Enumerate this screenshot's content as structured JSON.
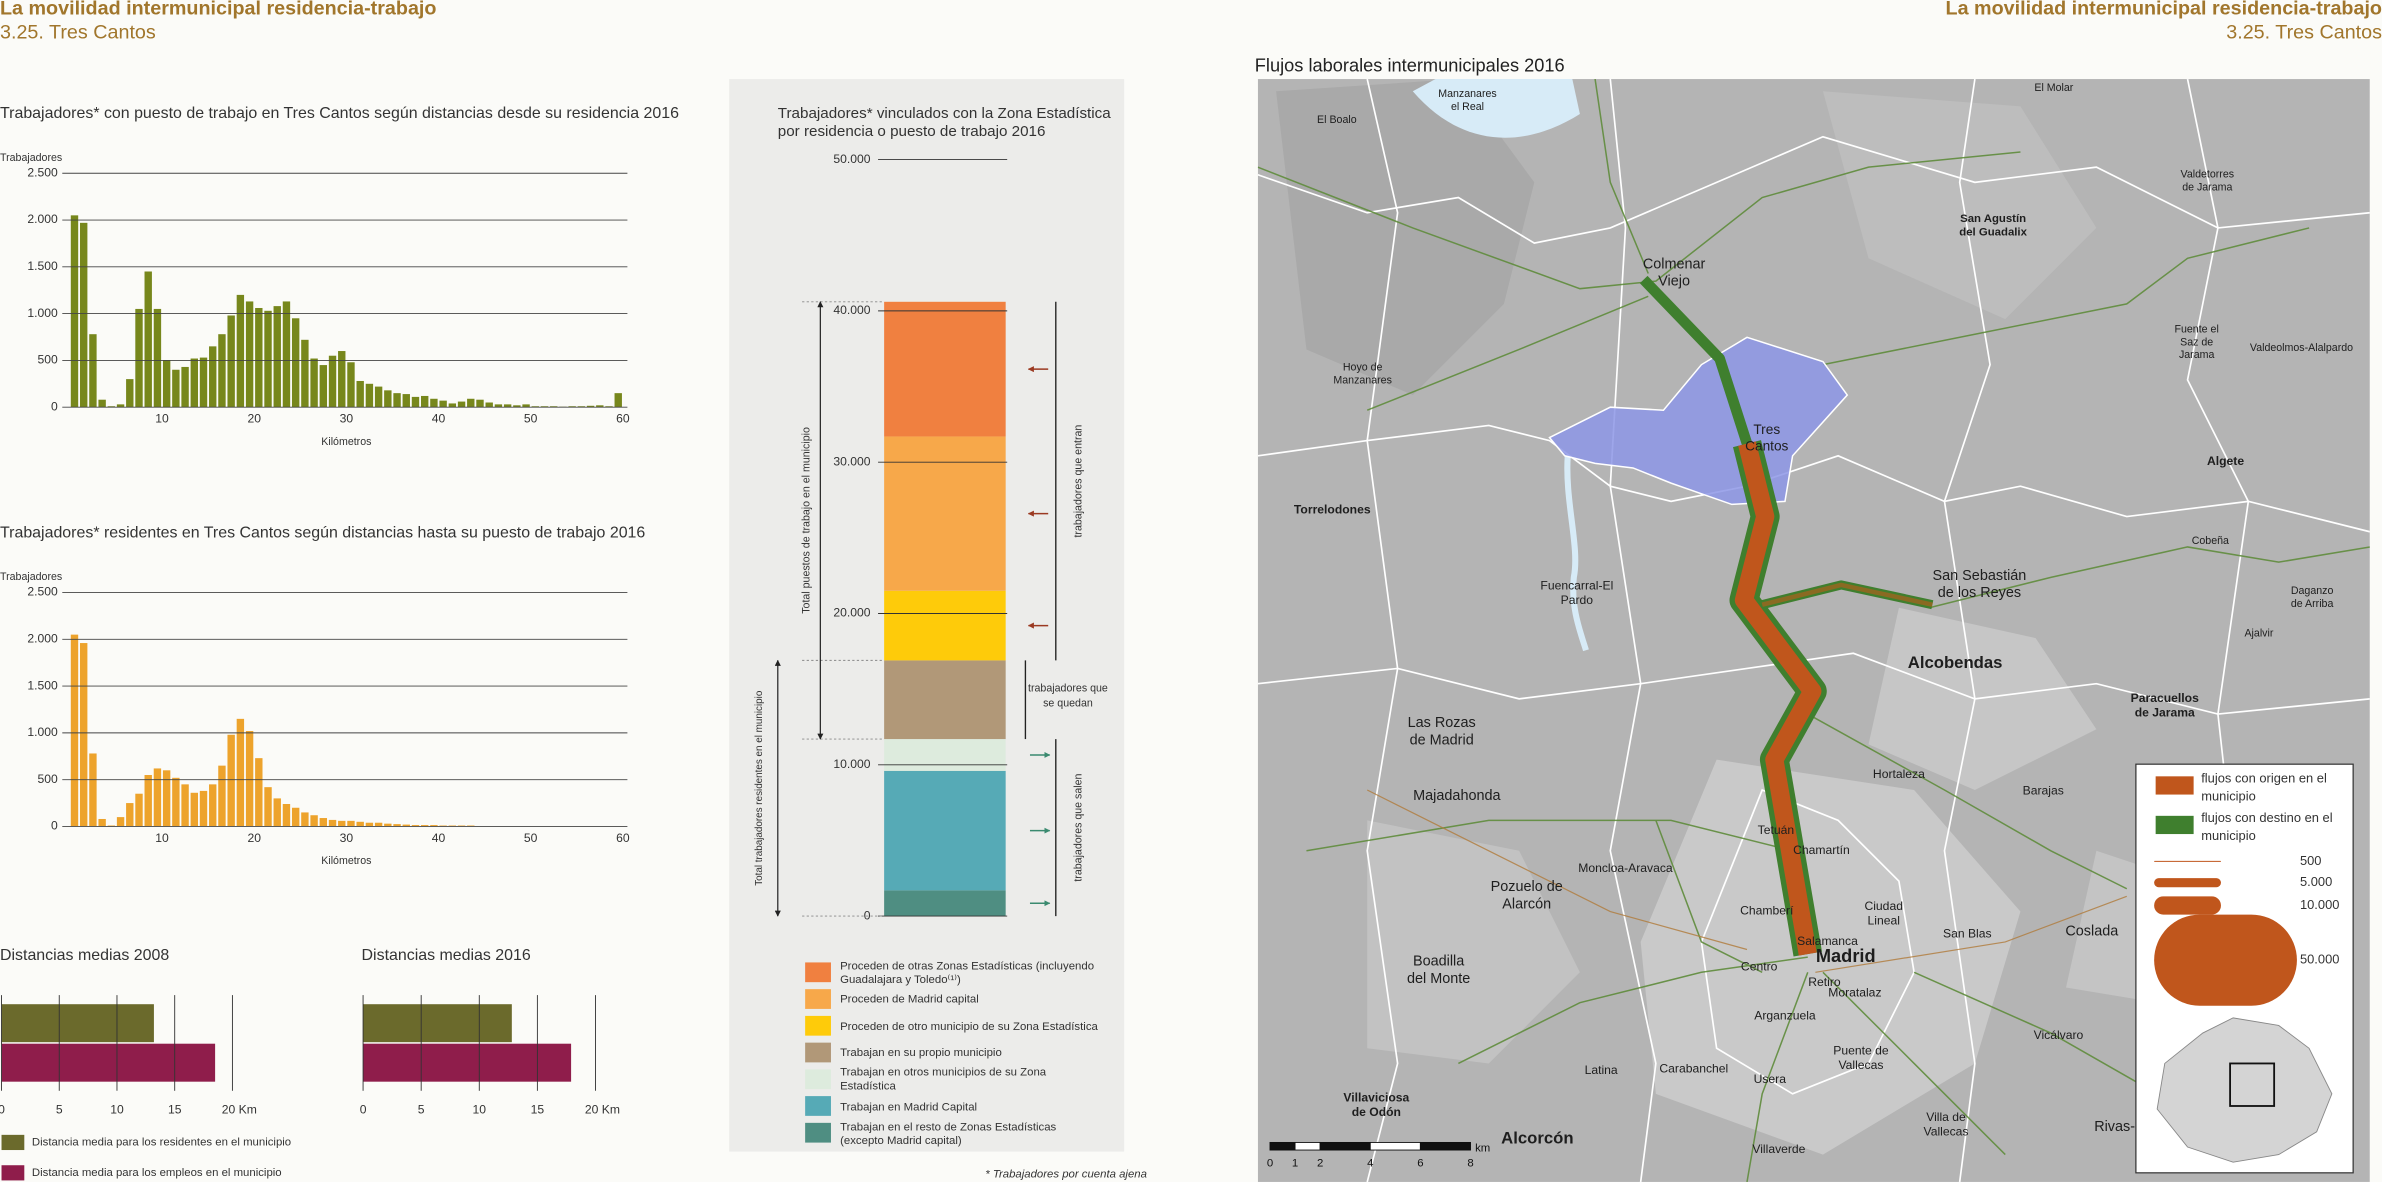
{
  "header": {
    "title": "La movilidad intermunicipal residencia-trabajo",
    "subtitle": "3.25. Tres Cantos"
  },
  "chart_data": [
    {
      "type": "histogram",
      "title": "Trabajadores* con puesto de trabajo en Tres Cantos según distancias desde su residencia 2016",
      "ylabel": "Trabajadores",
      "xlabel": "Kilómetros",
      "color": "#77871c",
      "bins": [
        0,
        1,
        2,
        3,
        4,
        5,
        6,
        7,
        8,
        9,
        10,
        11,
        12,
        13,
        14,
        15,
        16,
        17,
        18,
        19,
        20,
        21,
        22,
        23,
        24,
        25,
        26,
        27,
        28,
        29,
        30,
        31,
        32,
        33,
        34,
        35,
        36,
        37,
        38,
        39,
        40,
        41,
        42,
        43,
        44,
        45,
        46,
        47,
        48,
        49,
        50,
        51,
        52,
        53,
        54,
        55,
        56,
        57,
        58,
        59,
        60
      ],
      "values": [
        2050,
        1970,
        780,
        80,
        10,
        30,
        300,
        1050,
        1450,
        1050,
        500,
        400,
        430,
        520,
        530,
        650,
        780,
        980,
        1200,
        1130,
        1060,
        1030,
        1080,
        1130,
        950,
        720,
        520,
        450,
        550,
        600,
        480,
        280,
        250,
        220,
        180,
        150,
        140,
        110,
        120,
        90,
        70,
        40,
        60,
        90,
        80,
        50,
        30,
        30,
        20,
        30,
        10,
        10,
        10,
        5,
        10,
        10,
        15,
        20,
        10,
        150
      ],
      "xlim": [
        0,
        60
      ],
      "xticks": [
        10,
        20,
        30,
        40,
        50,
        60
      ],
      "ylim": [
        0,
        2500
      ],
      "yticks": [
        0,
        500,
        {
          "value": 1000,
          "label": "1.000"
        },
        {
          "value": 1500,
          "label": "1.500"
        },
        {
          "value": 2000,
          "label": "2.000"
        },
        {
          "value": 2500,
          "label": "2.500"
        }
      ],
      "grid": true
    },
    {
      "type": "histogram",
      "title": "Trabajadores* residentes en Tres Cantos según distancias hasta su puesto de trabajo 2016",
      "ylabel": "Trabajadores",
      "xlabel": "Kilómetros",
      "color": "#eda32c",
      "bins": [
        0,
        1,
        2,
        3,
        4,
        5,
        6,
        7,
        8,
        9,
        10,
        11,
        12,
        13,
        14,
        15,
        16,
        17,
        18,
        19,
        20,
        21,
        22,
        23,
        24,
        25,
        26,
        27,
        28,
        29,
        30,
        31,
        32,
        33,
        34,
        35,
        36,
        37,
        38,
        39,
        40,
        41,
        42,
        43,
        44,
        45,
        46,
        47,
        48,
        49,
        50,
        51,
        52,
        53,
        54,
        55,
        56,
        57,
        58,
        59,
        60
      ],
      "values": [
        2050,
        1960,
        780,
        80,
        10,
        100,
        250,
        350,
        550,
        620,
        600,
        520,
        450,
        360,
        380,
        450,
        650,
        980,
        1150,
        1020,
        730,
        420,
        300,
        240,
        200,
        150,
        120,
        90,
        70,
        60,
        60,
        50,
        40,
        40,
        30,
        25,
        20,
        15,
        15,
        15,
        10,
        10,
        10,
        10,
        5,
        5,
        5,
        5,
        5,
        5,
        3,
        3,
        2,
        2,
        2,
        2,
        2,
        2,
        2,
        2
      ],
      "xlim": [
        0,
        60
      ],
      "xticks": [
        10,
        20,
        30,
        40,
        50,
        60
      ],
      "ylim": [
        0,
        2500
      ],
      "yticks": [
        0,
        500,
        {
          "value": 1000,
          "label": "1.000"
        },
        {
          "value": 1500,
          "label": "1.500"
        },
        {
          "value": 2000,
          "label": "2.000"
        },
        {
          "value": 2500,
          "label": "2.500"
        }
      ],
      "grid": true
    },
    {
      "type": "hbar",
      "title": "Distancias medias 2008",
      "series": [
        {
          "name": "Distancia media para los residentes en el municipio",
          "color": "#6b6a2c",
          "values": [
            13.2
          ]
        },
        {
          "name": "Distancia media para los empleos en el municipio",
          "color": "#8f1d4b",
          "values": [
            18.5
          ]
        }
      ],
      "xlim": [
        0,
        20
      ],
      "xticks": [
        0,
        5,
        10,
        15,
        {
          "value": 20,
          "label": "20 Km"
        }
      ],
      "grid": true
    },
    {
      "type": "hbar",
      "title": "Distancias medias 2016",
      "series": [
        {
          "color": "#6b6a2c",
          "values": [
            12.8
          ]
        },
        {
          "color": "#8f1d4b",
          "values": [
            17.9
          ]
        }
      ],
      "xlim": [
        0,
        20
      ],
      "xticks": [
        0,
        5,
        10,
        15,
        {
          "value": 20,
          "label": "20 Km"
        }
      ],
      "grid": true
    },
    {
      "type": "stacked",
      "title": [
        "Trabajadores* vinculados con la Zona Estadística",
        "por residencia o puesto de trabajo 2016"
      ],
      "ylim": [
        0,
        50000
      ],
      "yticks": [
        0,
        {
          "value": 10000,
          "label": "10.000"
        },
        {
          "value": 20000,
          "label": "20.000"
        },
        {
          "value": 30000,
          "label": "30.000"
        },
        {
          "value": 40000,
          "label": "40.000"
        },
        {
          "value": 50000,
          "label": "50.000"
        }
      ],
      "series": [
        {
          "name": "Proceden de otras Zonas Estadísticas (incluyendo Guadalajara y Toledo⁽¹⁾)",
          "color": "#f08040",
          "values": [
            8900
          ]
        },
        {
          "name": "Proceden de Madrid capital",
          "color": "#f7a84a",
          "values": [
            10200
          ]
        },
        {
          "name": "Proceden de otro municipio de su Zona Estadística",
          "color": "#fecb0a",
          "values": [
            4600
          ]
        },
        {
          "name": "Trabajan en su propio municipio",
          "color": "#b19878",
          "values": [
            5200
          ]
        },
        {
          "name": "Trabajan en otros municipios de su Zona Estadística",
          "color": "#ddebdd",
          "values": [
            2100
          ]
        },
        {
          "name": "Trabajan en Madrid Capital",
          "color": "#56aab6",
          "values": [
            7900
          ]
        },
        {
          "name": "Trabajan en el resto de Zonas Estadísticas (excepto Madrid capital)",
          "color": "#4f8e82",
          "values": [
            1700
          ]
        }
      ],
      "annotations": {
        "total_jobs": "Total puestos de trabajo en el municipio",
        "total_residents": "Total trabajadores residentes en el municipio",
        "entering": "trabajadores que entran",
        "staying": "trabajadores que se quedan",
        "leaving": "trabajadores que salen"
      },
      "note": "* Trabajadores por cuenta ajena"
    }
  ],
  "map": {
    "title": "Flujos laborales intermunicipales 2016",
    "places": [
      {
        "lines": [
          "El Boalo"
        ]
      },
      {
        "lines": [
          "Manzanares",
          "el Real"
        ]
      },
      {
        "lines": [
          "El Molar"
        ]
      },
      {
        "lines": [
          "San Agustín",
          "del Guadalix"
        ]
      },
      {
        "lines": [
          "Valdetorres",
          "de Jarama"
        ]
      },
      {
        "lines": [
          "Colmenar",
          "Viejo"
        ]
      },
      {
        "lines": [
          "Tres",
          "Cantos"
        ]
      },
      {
        "lines": [
          "Fuente el",
          "Saz de",
          "Jarama"
        ]
      },
      {
        "lines": [
          "Valdeolmos-Alalpardo"
        ]
      },
      {
        "lines": [
          "Hoyo de",
          "Manzanares"
        ]
      },
      {
        "lines": [
          "Algete"
        ]
      },
      {
        "lines": [
          "Torrelodones"
        ]
      },
      {
        "lines": [
          "Cobeña"
        ]
      },
      {
        "lines": [
          "Fuencarral-El",
          "Pardo"
        ]
      },
      {
        "lines": [
          "San Sebastián",
          "de los Reyes"
        ]
      },
      {
        "lines": [
          "Daganzo",
          "de Arriba"
        ]
      },
      {
        "lines": [
          "Ajalvir"
        ]
      },
      {
        "lines": [
          "Alcobendas"
        ]
      },
      {
        "lines": [
          "Paracuellos",
          "de Jarama"
        ]
      },
      {
        "lines": [
          "Las Rozas",
          "de Madrid"
        ]
      },
      {
        "lines": [
          "Majadahonda"
        ]
      },
      {
        "lines": [
          "Hortaleza"
        ]
      },
      {
        "lines": [
          "Barajas"
        ]
      },
      {
        "lines": [
          "Tetuán"
        ]
      },
      {
        "lines": [
          "Chamartín"
        ]
      },
      {
        "lines": [
          "Moncloa-Aravaca"
        ]
      },
      {
        "lines": [
          "Pozuelo de",
          "Alarcón"
        ]
      },
      {
        "lines": [
          "Chamberí"
        ]
      },
      {
        "lines": [
          "Ciudad",
          "Lineal"
        ]
      },
      {
        "lines": [
          "Salamanca"
        ]
      },
      {
        "lines": [
          "Madrid"
        ]
      },
      {
        "lines": [
          "San Blas"
        ]
      },
      {
        "lines": [
          "Coslada"
        ]
      },
      {
        "lines": [
          "Centro"
        ]
      },
      {
        "lines": [
          "Boadilla",
          "del Monte"
        ]
      },
      {
        "lines": [
          "Retiro"
        ]
      },
      {
        "lines": [
          "Moratalaz"
        ]
      },
      {
        "lines": [
          "Arganzuela"
        ]
      },
      {
        "lines": [
          "Vicálvaro"
        ]
      },
      {
        "lines": [
          "Puente de",
          "Vallecas"
        ]
      },
      {
        "lines": [
          "Latina"
        ]
      },
      {
        "lines": [
          "Carabanchel"
        ]
      },
      {
        "lines": [
          "Usera"
        ]
      },
      {
        "lines": [
          "Villa de",
          "Vallecas"
        ]
      },
      {
        "lines": [
          "Rivas-"
        ]
      },
      {
        "lines": [
          "Villaviciosa",
          "de Odón"
        ]
      },
      {
        "lines": [
          "Alcorcón"
        ]
      },
      {
        "lines": [
          "Villaverde"
        ]
      }
    ],
    "legend": {
      "flows": [
        {
          "name": "flujos con origen en el municipio",
          "color": "#c0561c"
        },
        {
          "name": "flujos con destino en el municipio",
          "color": "#3f7f2e"
        }
      ],
      "sizes": [
        500,
        {
          "value": 5000,
          "label": "5.000"
        },
        {
          "value": 10000,
          "label": "10.000"
        },
        {
          "value": 50000,
          "label": "50.000"
        }
      ]
    },
    "scale": {
      "unit": "km",
      "ticks": [
        0,
        1,
        2,
        4,
        6,
        8
      ]
    }
  }
}
